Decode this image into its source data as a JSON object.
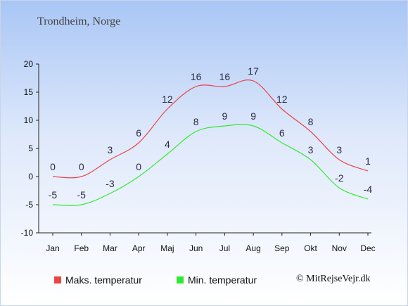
{
  "title": "Trondheim, Norge",
  "credit": "© MitRejseVejr.dk",
  "chart_data": {
    "type": "line",
    "categories": [
      "Jan",
      "Feb",
      "Mar",
      "Apr",
      "Maj",
      "Jun",
      "Jul",
      "Aug",
      "Sep",
      "Okt",
      "Nov",
      "Dec"
    ],
    "series": [
      {
        "name": "Maks. temperatur",
        "color": "#e84545",
        "values": [
          0,
          0,
          3,
          6,
          12,
          16,
          16,
          17,
          12,
          8,
          3,
          1
        ]
      },
      {
        "name": "Min. temperatur",
        "color": "#33e833",
        "values": [
          -5,
          -5,
          -3,
          0,
          4,
          8,
          9,
          9,
          6,
          3,
          -2,
          -4
        ]
      }
    ],
    "yticks": [
      -10,
      -5,
      0,
      5,
      10,
      15,
      20
    ],
    "ylim": [
      -10,
      20
    ],
    "grid": false,
    "legend_position": "bottom"
  }
}
